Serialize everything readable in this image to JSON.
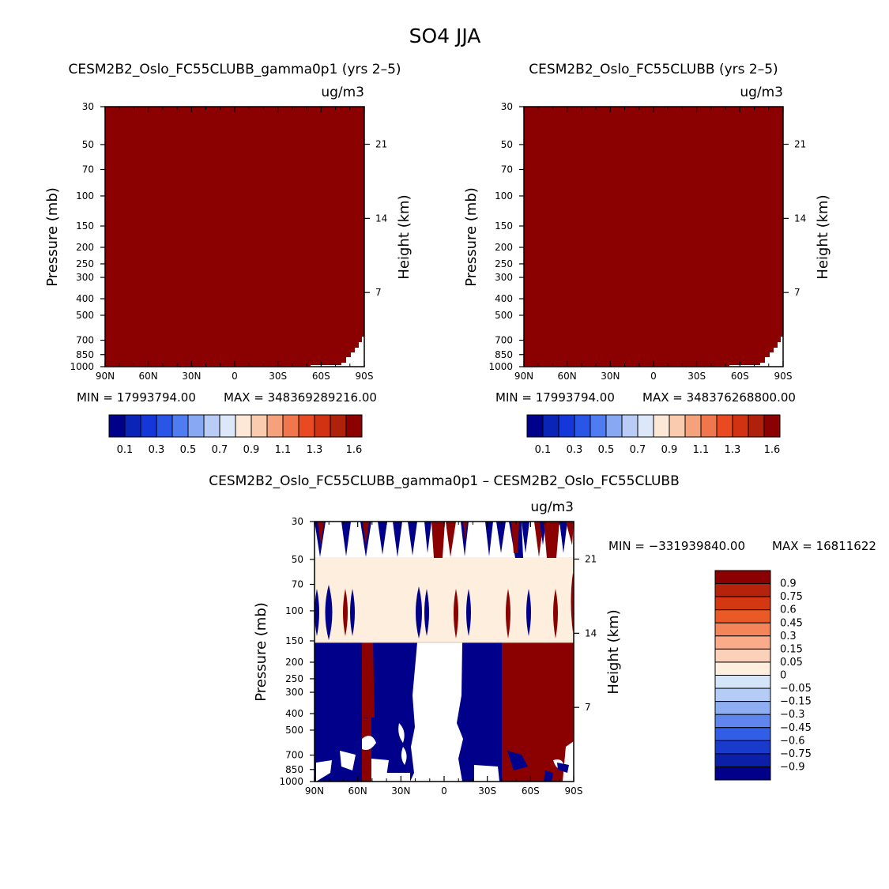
{
  "page": {
    "title": "SO4 JJA"
  },
  "chart_data": [
    {
      "type": "heatmap",
      "title": "CESM2B2_Oslo_FC55CLUBB_gamma0p1 (yrs 2–5)",
      "units": "ug/m3",
      "ylabel": "Pressure (mb)",
      "ylabel_right": "Height (km)",
      "x_ticks": [
        "90N",
        "60N",
        "30N",
        "0",
        "30S",
        "60S",
        "90S"
      ],
      "y_ticks": [
        "30",
        "50",
        "70",
        "100",
        "150",
        "200",
        "250",
        "300",
        "400",
        "500",
        "700",
        "850",
        "1000"
      ],
      "height_ticks": [
        "21",
        "14",
        "7"
      ],
      "ylim": [
        1000,
        30
      ],
      "xlim": [
        90,
        -90
      ],
      "min_text": "MIN = 17993794.00",
      "max_text": "MAX = 348369289216.00",
      "field": "values exceed the top contour level (1.6) everywhere except a small near-surface region at 70S–90S",
      "colorbar": {
        "orientation": "horizontal",
        "labels": [
          "0.1",
          "0.3",
          "0.5",
          "0.7",
          "0.9",
          "1.1",
          "1.3",
          "1.6"
        ],
        "colors": [
          "#00008b",
          "#0b24b8",
          "#1536d8",
          "#2956e6",
          "#4f7cf0",
          "#87a8f3",
          "#b8ccf6",
          "#dce8fa",
          "#fde8d8",
          "#fbcbae",
          "#f5a17c",
          "#f0764d",
          "#ea4a21",
          "#d13211",
          "#b0210b",
          "#8b0000"
        ]
      }
    },
    {
      "type": "heatmap",
      "title": "CESM2B2_Oslo_FC55CLUBB (yrs 2–5)",
      "units": "ug/m3",
      "ylabel": "Pressure (mb)",
      "ylabel_right": "Height (km)",
      "x_ticks": [
        "90N",
        "60N",
        "30N",
        "0",
        "30S",
        "60S",
        "90S"
      ],
      "y_ticks": [
        "30",
        "50",
        "70",
        "100",
        "150",
        "200",
        "250",
        "300",
        "400",
        "500",
        "700",
        "850",
        "1000"
      ],
      "height_ticks": [
        "21",
        "14",
        "7"
      ],
      "ylim": [
        1000,
        30
      ],
      "xlim": [
        90,
        -90
      ],
      "min_text": "MIN = 17993794.00",
      "max_text": "MAX = 348376268800.00",
      "field": "values exceed the top contour level (1.6) everywhere except a small near-surface region at 70S–90S",
      "colorbar": {
        "orientation": "horizontal",
        "labels": [
          "0.1",
          "0.3",
          "0.5",
          "0.7",
          "0.9",
          "1.1",
          "1.3",
          "1.6"
        ],
        "colors": [
          "#00008b",
          "#0b24b8",
          "#1536d8",
          "#2956e6",
          "#4f7cf0",
          "#87a8f3",
          "#b8ccf6",
          "#dce8fa",
          "#fde8d8",
          "#fbcbae",
          "#f5a17c",
          "#f0764d",
          "#ea4a21",
          "#d13211",
          "#b0210b",
          "#8b0000"
        ]
      }
    },
    {
      "type": "heatmap",
      "title": "CESM2B2_Oslo_FC55CLUBB_gamma0p1 – CESM2B2_Oslo_FC55CLUBB",
      "units": "ug/m3",
      "ylabel": "Pressure (mb)",
      "ylabel_right": "Height (km)",
      "x_ticks": [
        "90N",
        "60N",
        "30N",
        "0",
        "30S",
        "60S",
        "90S"
      ],
      "y_ticks": [
        "30",
        "50",
        "70",
        "100",
        "150",
        "200",
        "250",
        "300",
        "400",
        "500",
        "700",
        "850",
        "1000"
      ],
      "height_ticks": [
        "21",
        "14",
        "7"
      ],
      "ylim": [
        1000,
        30
      ],
      "xlim": [
        90,
        -90
      ],
      "min_text": "MIN = −331939840.00",
      "max_text": "MAX = 16811622",
      "regions": [
        {
          "lat": [
            90,
            -90
          ],
          "p": [
            150,
            47
          ],
          "value": 0.02
        },
        {
          "lat": [
            90,
            63
          ],
          "p": [
            1000,
            150
          ],
          "value": -0.9
        },
        {
          "lat": [
            62,
            56
          ],
          "p": [
            400,
            150
          ],
          "value": 0.9
        },
        {
          "lat": [
            51,
            32
          ],
          "p": [
            1000,
            150
          ],
          "value": -0.9
        },
        {
          "lat": [
            -15,
            -35
          ],
          "p": [
            1000,
            150
          ],
          "value": -0.9
        },
        {
          "lat": [
            -35,
            -90
          ],
          "p": [
            1000,
            150
          ],
          "value": 0.9
        },
        {
          "lat": [
            32,
            -15
          ],
          "p": [
            1000,
            150
          ],
          "value": null
        }
      ],
      "colorbar": {
        "orientation": "vertical",
        "labels": [
          "0.9",
          "0.75",
          "0.6",
          "0.45",
          "0.3",
          "0.15",
          "0.05",
          "0",
          "−0.05",
          "−0.15",
          "−0.3",
          "−0.45",
          "−0.6",
          "−0.75",
          "−0.9"
        ],
        "colors": [
          "#8b0000",
          "#b5230c",
          "#d43812",
          "#ea5a26",
          "#f4845a",
          "#f9ab8a",
          "#fbd1b9",
          "#fdeedd",
          "#d5e5f9",
          "#b4ccf6",
          "#8eaef2",
          "#5f86ee",
          "#315ee6",
          "#183bcc",
          "#0b1fa8",
          "#00008b"
        ]
      }
    }
  ]
}
